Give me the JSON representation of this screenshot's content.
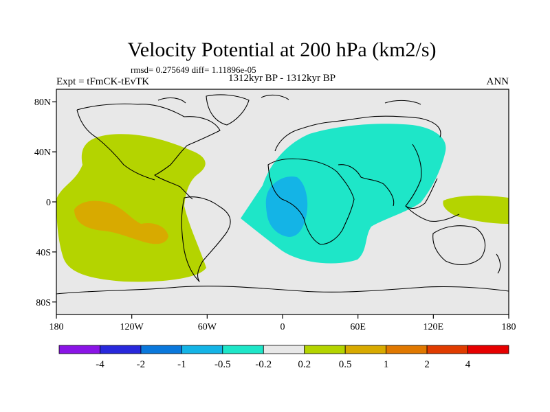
{
  "title": "Velocity Potential at 200 hPa (km2/s)",
  "stats_line": "rmsd= 0.275649 diff= 1.11896e-05",
  "experiment_label": "Expt = tFmCK-tEvTK",
  "period_label": "1312kyr BP - 1312kyr BP",
  "season_label": "ANN",
  "map": {
    "projection": "cylindrical-equidistant",
    "lon_range": [
      -180,
      180
    ],
    "lat_range": [
      -90,
      90
    ],
    "x_ticks": [
      "180",
      "120W",
      "60W",
      "0",
      "60E",
      "120E",
      "180"
    ],
    "y_ticks": [
      "80N",
      "40N",
      "0",
      "40S",
      "80S"
    ]
  },
  "colors": {
    "background_field": "#e8e8e8",
    "level_pos_0_2": "#b4d400",
    "level_pos_0_5": "#d8aa00",
    "level_neg_0_2": "#1ee6c8",
    "level_neg_0_5": "#14b4e6",
    "coastline": "#000000"
  },
  "colorbar": {
    "labels": [
      "-4",
      "-2",
      "-1",
      "-0.5",
      "-0.2",
      "0.2",
      "0.5",
      "1",
      "2",
      "4"
    ],
    "colors": [
      "#8a14e6",
      "#2828dc",
      "#0a78dc",
      "#14b4e6",
      "#1ee6c8",
      "#e8e8e8",
      "#b4d400",
      "#d8aa00",
      "#e07800",
      "#e03c00",
      "#e60000"
    ]
  }
}
